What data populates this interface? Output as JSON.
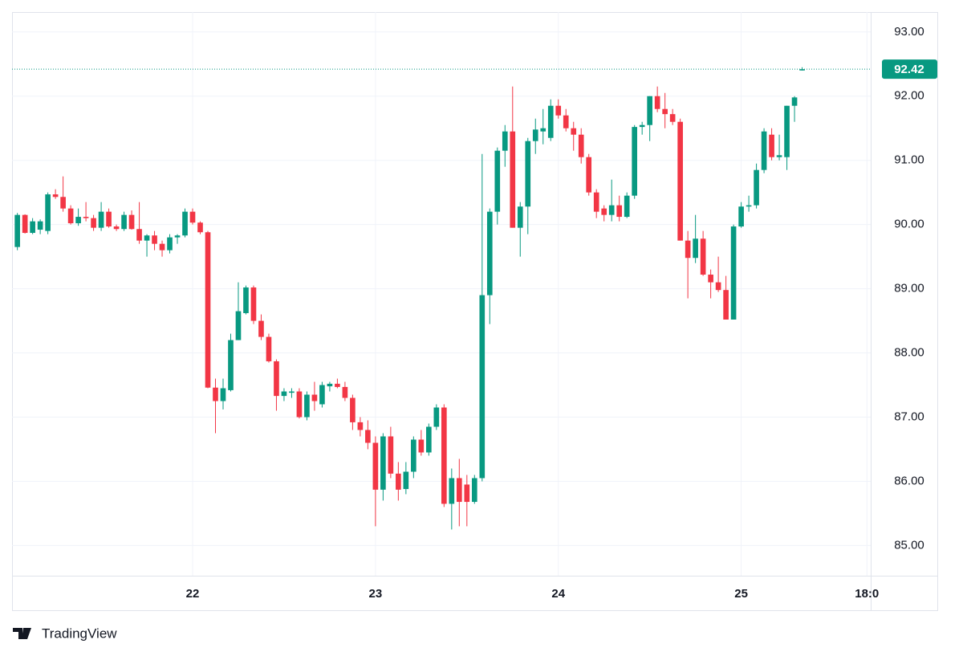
{
  "chart_data": {
    "type": "candlestick",
    "open": [
      89.65,
      90.15,
      89.87,
      89.92,
      89.9,
      90.47,
      90.43,
      90.25,
      90.02,
      90.12,
      90.1,
      89.95,
      90.2,
      89.97,
      89.93,
      90.15,
      89.93,
      89.75,
      89.83,
      89.7,
      89.6,
      89.8,
      89.83,
      90.2,
      90.03,
      89.88,
      87.46,
      87.25,
      87.42,
      88.2,
      88.62,
      89.02,
      88.5,
      88.25,
      87.87,
      87.33,
      87.38,
      87.4,
      87.0,
      87.35,
      87.2,
      87.48,
      87.52,
      87.47,
      87.3,
      86.92,
      86.8,
      86.6,
      85.87,
      86.7,
      86.12,
      85.88,
      86.15,
      86.65,
      86.45,
      86.85,
      87.15,
      85.65,
      86.05,
      85.95,
      85.68,
      86.05,
      88.9,
      90.2,
      91.15,
      91.45,
      89.95,
      90.28,
      91.3,
      91.45,
      91.35,
      91.85,
      91.7,
      91.5,
      91.4,
      91.05,
      90.5,
      90.25,
      90.15,
      90.3,
      90.12,
      90.45,
      91.52,
      91.55,
      92.0,
      91.8,
      91.72,
      91.6,
      89.75,
      89.48,
      89.78,
      89.22,
      89.1,
      88.98,
      88.52,
      89.97,
      90.28,
      90.3,
      90.85,
      91.4,
      91.05,
      91.05,
      91.85,
      92.4
    ],
    "high": [
      90.18,
      90.16,
      90.1,
      90.08,
      90.5,
      90.55,
      90.75,
      90.3,
      90.25,
      90.35,
      90.15,
      90.35,
      90.25,
      90.0,
      90.2,
      90.22,
      90.35,
      89.85,
      89.9,
      89.75,
      89.85,
      89.85,
      90.25,
      90.25,
      90.05,
      89.9,
      87.6,
      87.6,
      88.3,
      89.1,
      89.05,
      89.05,
      88.6,
      88.3,
      87.9,
      87.45,
      87.45,
      87.45,
      87.4,
      87.55,
      87.55,
      87.55,
      87.6,
      87.55,
      87.35,
      87.0,
      86.95,
      86.7,
      86.75,
      86.85,
      86.3,
      86.3,
      86.7,
      86.8,
      86.9,
      87.2,
      87.2,
      86.2,
      86.35,
      86.1,
      86.1,
      91.1,
      90.25,
      91.2,
      91.55,
      92.15,
      90.35,
      91.35,
      91.65,
      91.8,
      91.95,
      91.95,
      91.8,
      91.6,
      91.5,
      91.1,
      90.55,
      90.3,
      90.7,
      90.45,
      90.5,
      91.55,
      91.6,
      92.0,
      92.15,
      92.05,
      91.8,
      91.65,
      89.9,
      90.15,
      89.9,
      89.3,
      89.5,
      89.2,
      90.0,
      90.35,
      90.45,
      90.95,
      91.5,
      91.5,
      91.4,
      91.85,
      92.0,
      92.45
    ],
    "low": [
      89.6,
      89.86,
      89.85,
      89.85,
      89.85,
      90.4,
      90.2,
      90.0,
      89.98,
      90.05,
      89.9,
      89.9,
      89.95,
      89.9,
      89.9,
      89.92,
      89.7,
      89.5,
      89.6,
      89.5,
      89.55,
      89.7,
      89.8,
      90.0,
      89.85,
      87.45,
      86.75,
      87.12,
      87.4,
      88.2,
      88.6,
      88.45,
      88.2,
      87.85,
      87.1,
      87.25,
      87.3,
      86.98,
      86.95,
      87.1,
      87.15,
      87.4,
      87.45,
      87.25,
      86.8,
      86.7,
      86.5,
      85.3,
      85.7,
      86.05,
      85.7,
      85.8,
      86.05,
      86.4,
      86.4,
      86.8,
      85.6,
      85.25,
      85.3,
      85.3,
      85.65,
      86.0,
      88.45,
      90.0,
      90.9,
      89.95,
      89.5,
      89.85,
      91.1,
      91.25,
      91.3,
      91.65,
      91.45,
      91.15,
      90.95,
      90.45,
      90.1,
      90.05,
      90.05,
      90.05,
      90.1,
      90.4,
      91.4,
      91.3,
      91.75,
      91.5,
      91.55,
      89.75,
      88.85,
      89.4,
      89.2,
      88.85,
      88.95,
      88.52,
      88.52,
      89.95,
      90.2,
      90.25,
      90.8,
      91.0,
      91.0,
      90.85,
      91.6,
      92.4
    ],
    "close": [
      90.15,
      89.87,
      90.05,
      90.05,
      90.47,
      90.43,
      90.25,
      90.02,
      90.12,
      90.1,
      89.95,
      90.2,
      89.97,
      89.93,
      90.15,
      89.93,
      89.75,
      89.83,
      89.7,
      89.6,
      89.8,
      89.83,
      90.2,
      90.03,
      89.88,
      87.46,
      87.25,
      87.45,
      88.2,
      88.65,
      89.02,
      88.5,
      88.25,
      87.87,
      87.33,
      87.4,
      87.4,
      87.0,
      87.35,
      87.25,
      87.5,
      87.52,
      87.47,
      87.3,
      86.92,
      86.8,
      86.6,
      85.87,
      86.7,
      86.12,
      85.87,
      86.15,
      86.65,
      86.45,
      86.85,
      87.15,
      85.65,
      86.05,
      85.68,
      85.68,
      86.05,
      88.9,
      90.2,
      91.15,
      91.45,
      89.95,
      90.28,
      91.3,
      91.48,
      91.5,
      91.85,
      91.7,
      91.5,
      91.4,
      91.05,
      90.5,
      90.2,
      90.15,
      90.3,
      90.12,
      90.45,
      91.52,
      91.55,
      92.0,
      91.8,
      91.72,
      91.6,
      89.75,
      89.48,
      89.78,
      89.22,
      89.1,
      88.98,
      88.52,
      89.97,
      90.28,
      90.3,
      90.85,
      91.45,
      91.05,
      91.08,
      91.85,
      91.98,
      92.42
    ],
    "up_color": "#089981",
    "down_color": "#f23645",
    "last_price": 92.42,
    "xlim": [
      -0.7,
      112
    ],
    "xticks": [
      {
        "value": 23,
        "label": "22"
      },
      {
        "value": 47,
        "label": "23"
      },
      {
        "value": 71,
        "label": "24"
      },
      {
        "value": 95,
        "label": "25"
      },
      {
        "value": 111.5,
        "label": "18:0"
      }
    ],
    "ylim": [
      84.53,
      93.31
    ],
    "yticks": [
      {
        "value": 85,
        "label": "85.00"
      },
      {
        "value": 86,
        "label": "86.00"
      },
      {
        "value": 87,
        "label": "87.00"
      },
      {
        "value": 88,
        "label": "88.00"
      },
      {
        "value": 89,
        "label": "89.00"
      },
      {
        "value": 90,
        "label": "90.00"
      },
      {
        "value": 91,
        "label": "91.00"
      },
      {
        "value": 92,
        "label": "92.00"
      },
      {
        "value": 93,
        "label": "93.00"
      }
    ],
    "grid": true
  },
  "branding": "TradingView"
}
